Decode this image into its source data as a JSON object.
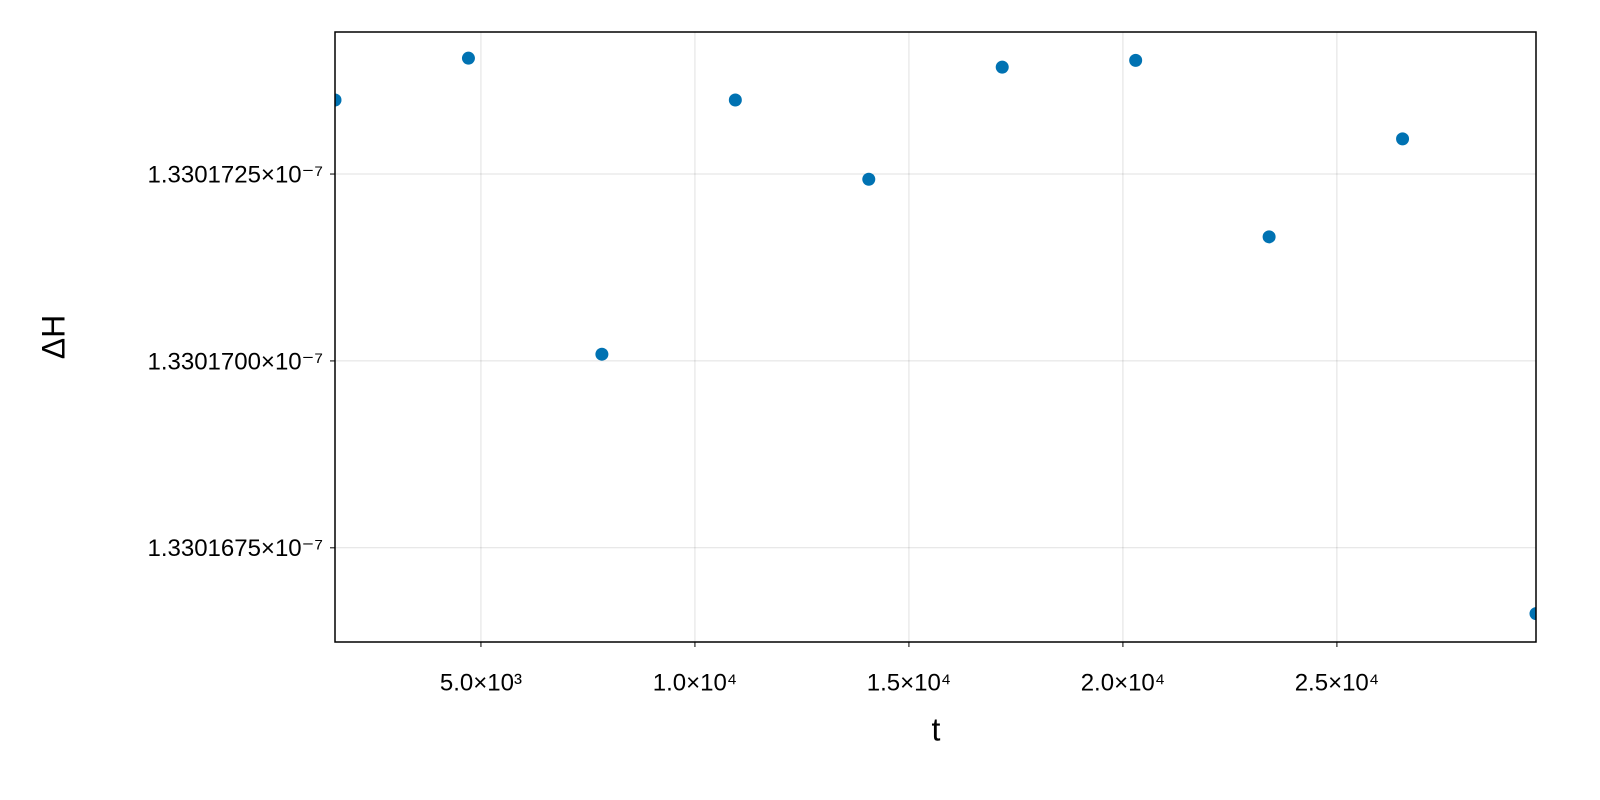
{
  "chart_data": {
    "type": "scatter",
    "x_label": "t",
    "y_label": "ΔH",
    "x": [
      1590,
      4708,
      7826,
      10944,
      14062,
      17180,
      20298,
      23416,
      26534,
      29652
    ],
    "values": [
      1.33017349e-07,
      1.33017405e-07,
      1.33017009e-07,
      1.33017349e-07,
      1.33017243e-07,
      1.33017393e-07,
      1.33017402e-07,
      1.33017166e-07,
      1.33017297e-07,
      1.33016662e-07
    ],
    "color": "#0072b2",
    "xlim": [
      1590,
      29652
    ],
    "xticks": [
      {
        "value": 5000,
        "label": "5.0×10³"
      },
      {
        "value": 10000,
        "label": "1.0×10⁴"
      },
      {
        "value": 15000,
        "label": "1.5×10⁴"
      },
      {
        "value": 20000,
        "label": "2.0×10⁴"
      },
      {
        "value": 25000,
        "label": "2.5×10⁴"
      }
    ],
    "ylim": [
      1.33016624e-07,
      1.3301744e-07
    ],
    "yticks": [
      {
        "value": 1.3301675e-07,
        "label": "1.3301675×10⁻⁷"
      },
      {
        "value": 1.33017e-07,
        "label": "1.3301700×10⁻⁷"
      },
      {
        "value": 1.3301725e-07,
        "label": "1.3301725×10⁻⁷"
      }
    ],
    "grid": true
  }
}
